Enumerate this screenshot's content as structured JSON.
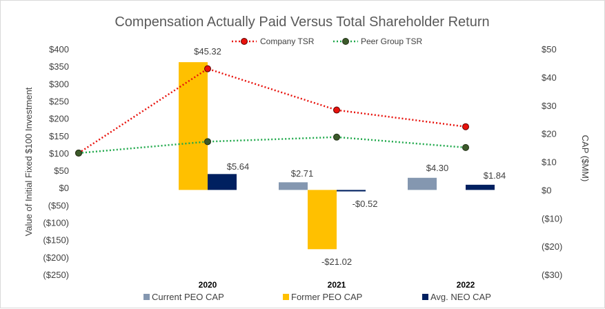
{
  "chart_data": {
    "type": "bar+line",
    "title": "Compensation Actually Paid Versus Total Shareholder Return",
    "categories": [
      "2020",
      "2021",
      "2022"
    ],
    "left_axis": {
      "label": "Value of Initial Fixed $100 Investment",
      "range": [
        -250,
        400
      ],
      "ticks": [
        "$400",
        "$350",
        "$300",
        "$250",
        "$200",
        "$150",
        "$100",
        "$50",
        "$0",
        "($50)",
        "($100)",
        "($150)",
        "($200)",
        "($250)"
      ]
    },
    "right_axis": {
      "label": "CAP ($MM)",
      "range": [
        -30,
        50
      ],
      "ticks": [
        "$50",
        "$40",
        "$30",
        "$20",
        "$10",
        "$0",
        "($10)",
        "($20)",
        "($30)"
      ]
    },
    "line_series": [
      {
        "name": "Company TSR",
        "color": "#e8120c",
        "axis": "left",
        "values": [
          100,
          343,
          224,
          176
        ],
        "x_positions": [
          "start",
          "2020",
          "2021",
          "2022"
        ]
      },
      {
        "name": "Peer Group TSR",
        "color": "#1ea84a",
        "axis": "left",
        "values": [
          100,
          133,
          146,
          116
        ],
        "x_positions": [
          "start",
          "2020",
          "2021",
          "2022"
        ]
      }
    ],
    "bar_series": [
      {
        "name": "Current PEO CAP",
        "color": "#8497b0",
        "axis": "right",
        "values": [
          null,
          2.71,
          4.3
        ],
        "labels": [
          "",
          "$2.71",
          "$4.30"
        ]
      },
      {
        "name": "Former PEO CAP",
        "color": "#ffc000",
        "axis": "right",
        "values": [
          45.32,
          -21.02,
          null
        ],
        "labels": [
          "$45.32",
          "-$21.02",
          ""
        ]
      },
      {
        "name": "Avg. NEO CAP",
        "color": "#002060",
        "axis": "right",
        "values": [
          5.64,
          -0.52,
          1.84
        ],
        "labels": [
          "$5.64",
          "-$0.52",
          "$1.84"
        ]
      }
    ]
  }
}
